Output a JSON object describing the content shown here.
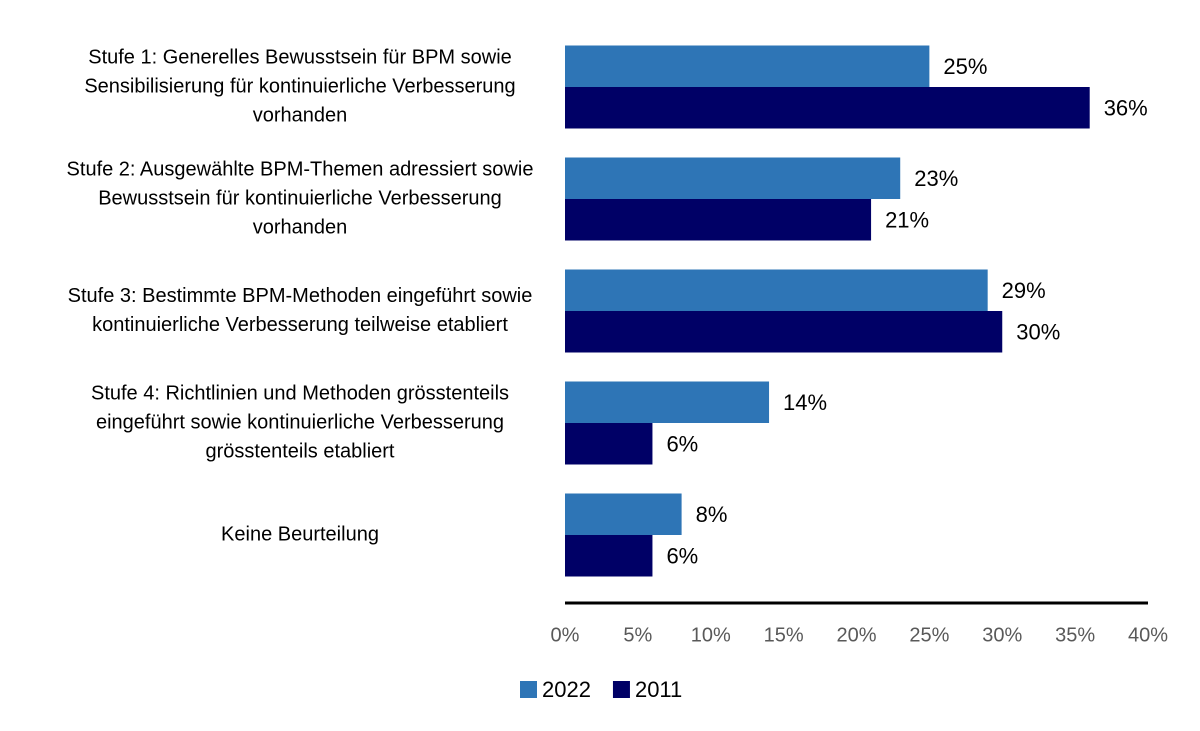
{
  "chart_data": {
    "type": "hbar",
    "categories": [
      [
        "Stufe 1: Generelles Bewusstsein für BPM sowie",
        "Sensibilisierung für kontinuierliche Verbesserung",
        "vorhanden"
      ],
      [
        "Stufe 2: Ausgewählte BPM-Themen adressiert sowie",
        "Bewusstsein für kontinuierliche Verbesserung",
        "vorhanden"
      ],
      [
        "Stufe 3: Bestimmte BPM-Methoden eingeführt sowie",
        "kontinuierliche Verbesserung teilweise etabliert"
      ],
      [
        "Stufe 4: Richtlinien und Methoden grösstenteils",
        "eingeführt sowie kontinuierliche Verbesserung",
        "grösstenteils etabliert"
      ],
      [
        "Keine Beurteilung"
      ]
    ],
    "series": [
      {
        "name": "2022",
        "color": "#2e75b6",
        "values": [
          25,
          23,
          29,
          14,
          8
        ],
        "value_labels": [
          "25%",
          "23%",
          "29%",
          "14%",
          "8%"
        ]
      },
      {
        "name": "2011",
        "color": "#000066",
        "values": [
          36,
          21,
          30,
          6,
          6
        ],
        "value_labels": [
          "36%",
          "21%",
          "30%",
          "6%",
          "6%"
        ]
      }
    ],
    "xlim": [
      0,
      40
    ],
    "xticks": [
      {
        "value": 0,
        "label": "0%"
      },
      {
        "value": 5,
        "label": "5%"
      },
      {
        "value": 10,
        "label": "10%"
      },
      {
        "value": 15,
        "label": "15%"
      },
      {
        "value": 20,
        "label": "20%"
      },
      {
        "value": 25,
        "label": "25%"
      },
      {
        "value": 30,
        "label": "30%"
      },
      {
        "value": 35,
        "label": "35%"
      },
      {
        "value": 40,
        "label": "40%"
      }
    ],
    "legend": "bottom",
    "grid": false
  }
}
